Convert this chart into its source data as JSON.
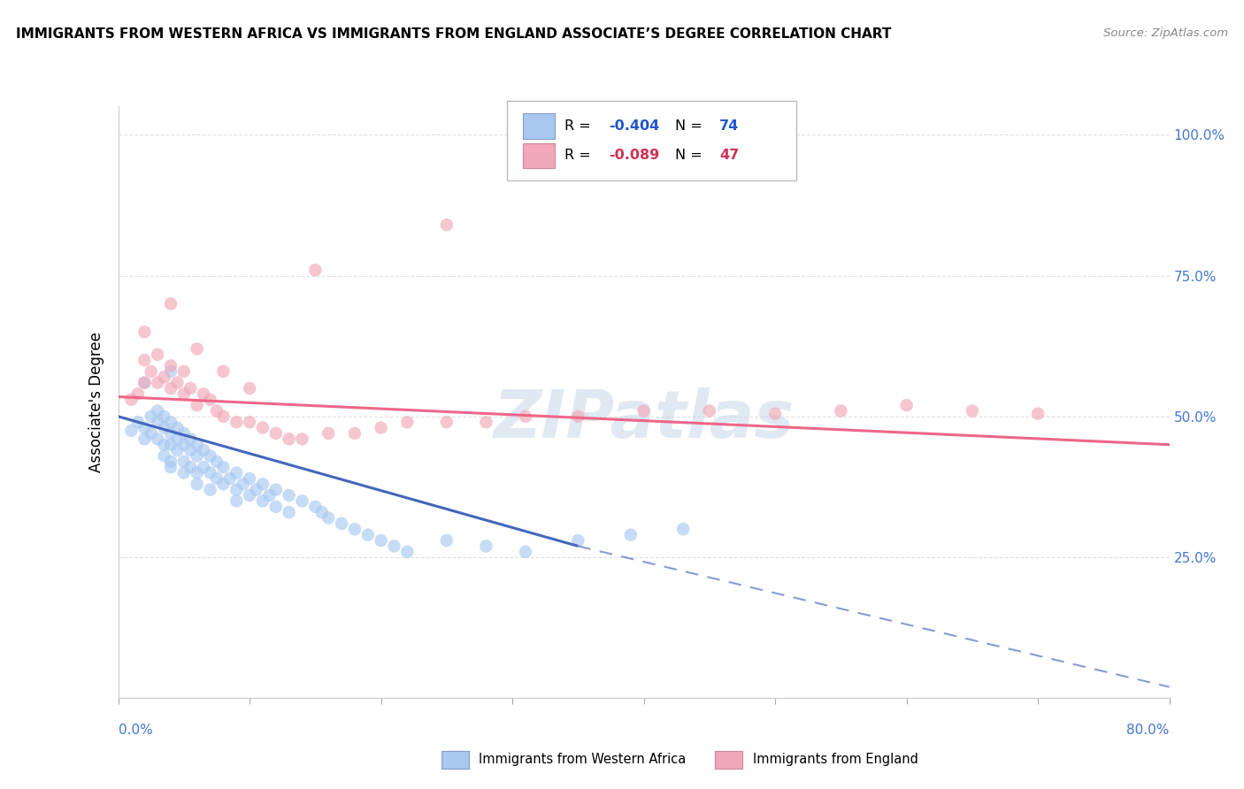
{
  "title": "IMMIGRANTS FROM WESTERN AFRICA VS IMMIGRANTS FROM ENGLAND ASSOCIATE’S DEGREE CORRELATION CHART",
  "source": "Source: ZipAtlas.com",
  "ylabel": "Associate's Degree",
  "xmin": 0.0,
  "xmax": 0.8,
  "ymin": 0.0,
  "ymax": 1.05,
  "blue_R": -0.404,
  "blue_N": 74,
  "pink_R": -0.089,
  "pink_N": 47,
  "blue_color": "#a8c8f0",
  "pink_color": "#f0a8b8",
  "blue_line_color": "#4466bb",
  "pink_line_color": "#ee6688",
  "watermark": "ZIPatlas",
  "legend_label_blue": "Immigrants from Western Africa",
  "legend_label_pink": "Immigrants from England",
  "background_color": "#ffffff",
  "grid_color": "#dddddd",
  "blue_scatter_x": [
    0.01,
    0.015,
    0.02,
    0.02,
    0.025,
    0.025,
    0.03,
    0.03,
    0.03,
    0.035,
    0.035,
    0.035,
    0.035,
    0.04,
    0.04,
    0.04,
    0.04,
    0.04,
    0.045,
    0.045,
    0.045,
    0.05,
    0.05,
    0.05,
    0.05,
    0.055,
    0.055,
    0.055,
    0.06,
    0.06,
    0.06,
    0.06,
    0.065,
    0.065,
    0.07,
    0.07,
    0.07,
    0.075,
    0.075,
    0.08,
    0.08,
    0.085,
    0.09,
    0.09,
    0.09,
    0.095,
    0.1,
    0.1,
    0.105,
    0.11,
    0.11,
    0.115,
    0.12,
    0.12,
    0.13,
    0.13,
    0.14,
    0.15,
    0.155,
    0.16,
    0.17,
    0.18,
    0.19,
    0.2,
    0.21,
    0.22,
    0.25,
    0.28,
    0.31,
    0.35,
    0.39,
    0.43,
    0.02,
    0.04
  ],
  "blue_scatter_y": [
    0.475,
    0.49,
    0.48,
    0.46,
    0.5,
    0.47,
    0.51,
    0.49,
    0.46,
    0.5,
    0.48,
    0.45,
    0.43,
    0.49,
    0.47,
    0.45,
    0.42,
    0.41,
    0.48,
    0.46,
    0.44,
    0.47,
    0.45,
    0.42,
    0.4,
    0.46,
    0.44,
    0.41,
    0.45,
    0.43,
    0.4,
    0.38,
    0.44,
    0.41,
    0.43,
    0.4,
    0.37,
    0.42,
    0.39,
    0.41,
    0.38,
    0.39,
    0.4,
    0.37,
    0.35,
    0.38,
    0.39,
    0.36,
    0.37,
    0.38,
    0.35,
    0.36,
    0.37,
    0.34,
    0.36,
    0.33,
    0.35,
    0.34,
    0.33,
    0.32,
    0.31,
    0.3,
    0.29,
    0.28,
    0.27,
    0.26,
    0.28,
    0.27,
    0.26,
    0.28,
    0.29,
    0.3,
    0.56,
    0.58
  ],
  "pink_scatter_x": [
    0.01,
    0.015,
    0.02,
    0.02,
    0.025,
    0.03,
    0.03,
    0.035,
    0.04,
    0.04,
    0.045,
    0.05,
    0.05,
    0.055,
    0.06,
    0.065,
    0.07,
    0.075,
    0.08,
    0.09,
    0.1,
    0.11,
    0.12,
    0.13,
    0.14,
    0.16,
    0.18,
    0.2,
    0.22,
    0.25,
    0.28,
    0.31,
    0.35,
    0.4,
    0.45,
    0.5,
    0.55,
    0.6,
    0.65,
    0.7,
    0.02,
    0.04,
    0.06,
    0.08,
    0.1,
    0.15,
    0.25
  ],
  "pink_scatter_y": [
    0.53,
    0.54,
    0.56,
    0.6,
    0.58,
    0.61,
    0.56,
    0.57,
    0.59,
    0.55,
    0.56,
    0.54,
    0.58,
    0.55,
    0.52,
    0.54,
    0.53,
    0.51,
    0.5,
    0.49,
    0.49,
    0.48,
    0.47,
    0.46,
    0.46,
    0.47,
    0.47,
    0.48,
    0.49,
    0.49,
    0.49,
    0.5,
    0.5,
    0.51,
    0.51,
    0.505,
    0.51,
    0.52,
    0.51,
    0.505,
    0.65,
    0.7,
    0.62,
    0.58,
    0.55,
    0.76,
    0.84
  ],
  "blue_line_x0": 0.0,
  "blue_line_x_solid_end": 0.35,
  "blue_line_x1": 0.8,
  "blue_line_y0": 0.5,
  "blue_line_y_solid_end": 0.27,
  "blue_line_y1": 0.02,
  "pink_line_x0": 0.0,
  "pink_line_x1": 0.8,
  "pink_line_y0": 0.535,
  "pink_line_y1": 0.45
}
